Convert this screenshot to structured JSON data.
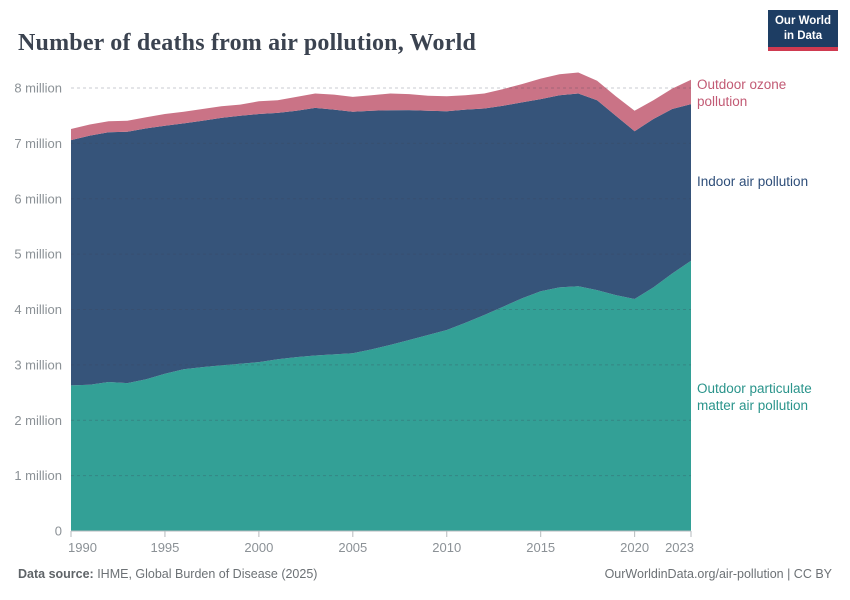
{
  "header": {
    "title": "Number of deaths from air pollution, World"
  },
  "logo": {
    "line1": "Our World",
    "line2": "in Data"
  },
  "chart_data": {
    "type": "area",
    "stacked": true,
    "title": "Number of deaths from air pollution, World",
    "unit": "deaths (millions)",
    "grid": "dashed horizontal",
    "legend_position": "right",
    "xlabel": "",
    "ylabel": "",
    "ylim": [
      0,
      8
    ],
    "x": [
      1990,
      1991,
      1992,
      1993,
      1994,
      1995,
      1996,
      1997,
      1998,
      1999,
      2000,
      2001,
      2002,
      2003,
      2004,
      2005,
      2006,
      2007,
      2008,
      2009,
      2010,
      2011,
      2012,
      2013,
      2014,
      2015,
      2016,
      2017,
      2018,
      2019,
      2020,
      2021,
      2022,
      2023
    ],
    "x_ticks": [
      1990,
      1995,
      2000,
      2005,
      2010,
      2015,
      2020,
      2023
    ],
    "y_ticks": [
      {
        "value": 0,
        "label": "0"
      },
      {
        "value": 1,
        "label": "1 million"
      },
      {
        "value": 2,
        "label": "2 million"
      },
      {
        "value": 3,
        "label": "3 million"
      },
      {
        "value": 4,
        "label": "4 million"
      },
      {
        "value": 5,
        "label": "5 million"
      },
      {
        "value": 6,
        "label": "6 million"
      },
      {
        "value": 7,
        "label": "7 million"
      },
      {
        "value": 8,
        "label": "8 million"
      }
    ],
    "series": [
      {
        "id": "outdoor-particulate-matter",
        "name": "Outdoor particulate matter air pollution",
        "color": "#33A096",
        "label_color": "#2a948b",
        "values": [
          2.63,
          2.64,
          2.69,
          2.67,
          2.74,
          2.84,
          2.92,
          2.96,
          2.99,
          3.02,
          3.05,
          3.1,
          3.14,
          3.17,
          3.19,
          3.21,
          3.28,
          3.36,
          3.45,
          3.54,
          3.63,
          3.76,
          3.9,
          4.05,
          4.2,
          4.33,
          4.4,
          4.42,
          4.35,
          4.26,
          4.19,
          4.4,
          4.65,
          4.88
        ]
      },
      {
        "id": "indoor-air-pollution",
        "name": "Indoor air pollution",
        "color": "#36547A",
        "label_color": "#2e4e79",
        "values": [
          4.43,
          4.5,
          4.51,
          4.54,
          4.53,
          4.48,
          4.44,
          4.45,
          4.47,
          4.48,
          4.48,
          4.45,
          4.45,
          4.47,
          4.42,
          4.36,
          4.31,
          4.24,
          4.15,
          4.05,
          3.95,
          3.85,
          3.73,
          3.63,
          3.54,
          3.47,
          3.47,
          3.48,
          3.43,
          3.24,
          3.03,
          3.04,
          2.97,
          2.83
        ]
      },
      {
        "id": "outdoor-ozone",
        "name": "Outdoor ozone pollution",
        "color": "#CA7386",
        "label_color": "#c25a74",
        "values": [
          0.2,
          0.2,
          0.2,
          0.2,
          0.2,
          0.21,
          0.21,
          0.21,
          0.21,
          0.2,
          0.23,
          0.23,
          0.25,
          0.26,
          0.27,
          0.27,
          0.28,
          0.3,
          0.29,
          0.27,
          0.27,
          0.26,
          0.27,
          0.3,
          0.33,
          0.37,
          0.38,
          0.38,
          0.35,
          0.35,
          0.37,
          0.34,
          0.37,
          0.44
        ]
      }
    ]
  },
  "footer": {
    "source_label": "Data source:",
    "source_text": " IHME, Global Burden of Disease (2025)",
    "credit": "OurWorldinData.org/air-pollution | CC BY"
  }
}
